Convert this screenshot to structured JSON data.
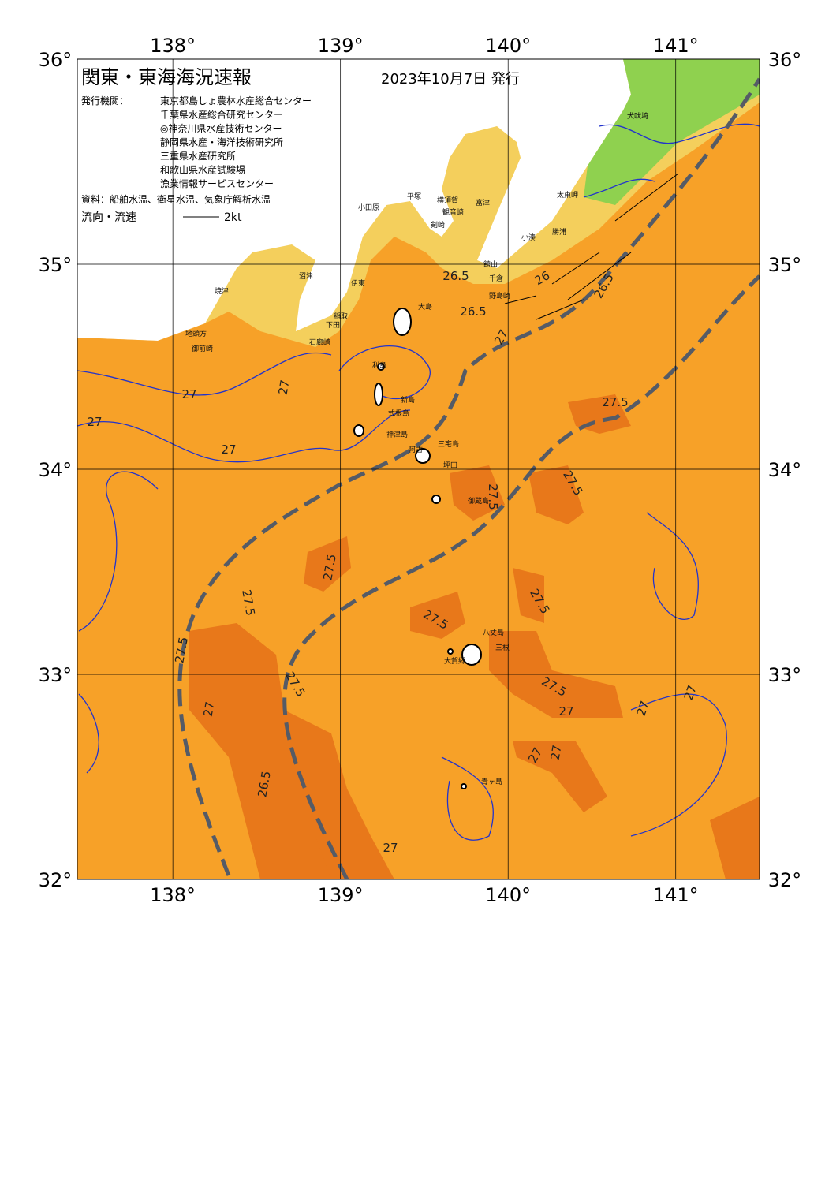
{
  "header": {
    "title": "関東・東海海況速報",
    "date": "2023年10月7日 発行",
    "issuer_label": "発行機関：",
    "issuers": [
      "東京都島しょ農林水産総合センター",
      "千葉県水産総合研究センター",
      "◎神奈川県水産技術センター",
      "静岡県水産・海洋技術研究所",
      "三重県水産研究所",
      "和歌山県水産試験場",
      "漁業情報サービスセンター"
    ],
    "source": "資料：船舶水温、衛星水温、気象庁解析水温",
    "legend_label": "流向・流速",
    "legend_speed": "2kt"
  },
  "map": {
    "xlim": [
      137.43,
      141.5
    ],
    "ylim": [
      32,
      36
    ],
    "xticks": [
      {
        "value": 138,
        "label": "138°"
      },
      {
        "value": 139,
        "label": "139°"
      },
      {
        "value": 140,
        "label": "140°"
      },
      {
        "value": 141,
        "label": "141°"
      }
    ],
    "yticks": [
      {
        "value": 32,
        "label": "32°"
      },
      {
        "value": 33,
        "label": "33°"
      },
      {
        "value": 34,
        "label": "34°"
      },
      {
        "value": 35,
        "label": "35°"
      },
      {
        "value": 36,
        "label": "36°"
      }
    ],
    "place_names": [
      "犬吠埼",
      "太東岬",
      "勝浦",
      "小湊",
      "富津",
      "館山",
      "千倉",
      "野島崎",
      "横須賀",
      "観音崎",
      "剣崎",
      "平塚",
      "小田原",
      "伊東",
      "稲取",
      "下田",
      "石廊崎",
      "沼津",
      "焼津",
      "御前崎",
      "地頭方",
      "大島",
      "利島",
      "新島",
      "式根島",
      "神津島",
      "三宅島",
      "阿古",
      "坪田",
      "御蔵島",
      "八丈島",
      "三根",
      "大賀郷",
      "青ヶ島"
    ],
    "contour_labels": [
      "26",
      "26.5",
      "26.5",
      "26.5",
      "27",
      "27",
      "27",
      "27",
      "27",
      "27.5",
      "27.5",
      "27.5",
      "27.5",
      "27.5",
      "27.5",
      "27.5",
      "27.5",
      "27.5",
      "27.5",
      "27",
      "27",
      "27",
      "27",
      "26.5",
      "27",
      "27",
      "27"
    ]
  }
}
